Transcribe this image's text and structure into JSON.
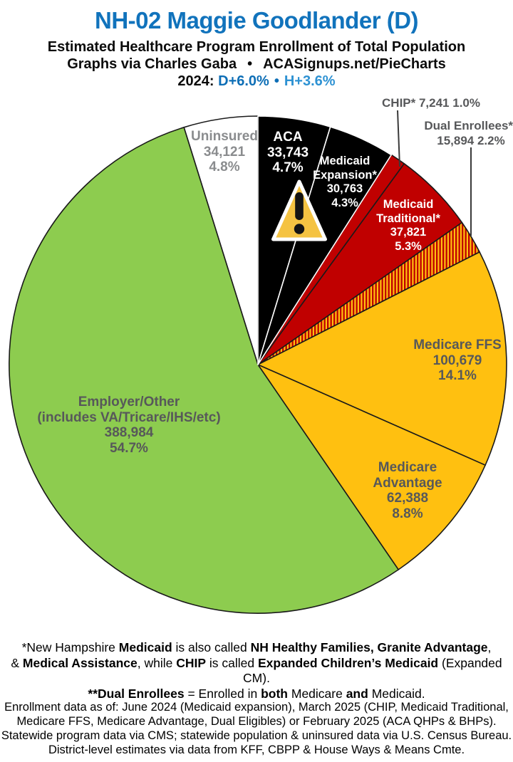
{
  "header": {
    "title": "NH-02 Maggie Goodlander (D)",
    "subtitle": "Estimated Healthcare Program Enrollment of Total Population",
    "credit": {
      "author": "Graphs via Charles Gaba",
      "bullet": "•",
      "site": "ACASignups.net/PieCharts"
    },
    "lean": {
      "prefix": "2024:",
      "d": "D+6.0%",
      "bullet": "•",
      "h": "H+3.6%"
    }
  },
  "colors": {
    "title_blue": "#1173BC",
    "d_blue": "#0D6EB6",
    "h_blue": "#2E92D3",
    "pie_black": "#000000",
    "pie_red": "#C00000",
    "pie_amber": "#FFC010",
    "pie_green": "#8DCC4F",
    "pie_white": "#FFFFFF",
    "label_dark_gray": "#57585A",
    "label_light_gray": "#8A8C8E"
  },
  "chart_data": {
    "type": "pie",
    "title": "Estimated Healthcare Program Enrollment of Total Population",
    "legend_position": "labels in/beside slices",
    "start_angle_deg": 0,
    "direction": "clockwise",
    "slices": [
      {
        "name": "ACA",
        "value": 33743,
        "pct": 4.7,
        "color": "#000000",
        "label_lines": [
          "ACA",
          "33,743",
          "4.7%"
        ]
      },
      {
        "name": "Medicaid Expansion*",
        "value": 30763,
        "pct": 4.3,
        "color": "#000000",
        "label_lines": [
          "Medicaid",
          "Expansion*",
          "30,763",
          "4.3%"
        ]
      },
      {
        "name": "CHIP*",
        "value": 7241,
        "pct": 1.0,
        "color": "#C00000",
        "label_lines": [
          "CHIP* 7,241 1.0%"
        ]
      },
      {
        "name": "Medicaid Traditional*",
        "value": 37821,
        "pct": 5.3,
        "color": "#C00000",
        "label_lines": [
          "Medicaid",
          "Traditional*",
          "37,821",
          "5.3%"
        ]
      },
      {
        "name": "Dual Enrollees**",
        "value": 15894,
        "pct": 2.2,
        "color": "hatch",
        "label_lines": [
          "Dual Enrollees**",
          "15,894 2.2%"
        ]
      },
      {
        "name": "Medicare FFS",
        "value": 100679,
        "pct": 14.1,
        "color": "#FFC010",
        "label_lines": [
          "Medicare FFS",
          "100,679",
          "14.1%"
        ]
      },
      {
        "name": "Medicare Advantage",
        "value": 62388,
        "pct": 8.8,
        "color": "#FFC010",
        "label_lines": [
          "Medicare",
          "Advantage",
          "62,388",
          "8.8%"
        ]
      },
      {
        "name": "Employer/Other (includes VA/Tricare/IHS/etc)",
        "value": 388984,
        "pct": 54.7,
        "color": "#8DCC4F",
        "label_lines": [
          "Employer/Other",
          "(includes VA/Tricare/IHS/etc)",
          "388,984",
          "54.7%"
        ]
      },
      {
        "name": "Uninsured",
        "value": 34121,
        "pct": 4.8,
        "color": "#FFFFFF",
        "label_lines": [
          "Uninsured",
          "34,121",
          "4.8%"
        ]
      }
    ],
    "hatch": {
      "bg": "#FFC010",
      "stripe": "#C00000"
    },
    "warning_icon": {
      "triangle_color": "#F5C342",
      "mark_color": "#141414",
      "outline_color": "#FFFFFF"
    }
  },
  "footnote1": {
    "line1": [
      {
        "t": "*New Hampshire ",
        "b": false
      },
      {
        "t": "Medicaid",
        "b": true
      },
      {
        "t": " is also called ",
        "b": false
      },
      {
        "t": "NH Healthy Families, Granite Advantage",
        "b": true
      },
      {
        "t": ",",
        "b": false
      }
    ],
    "line2": [
      {
        "t": "& ",
        "b": false
      },
      {
        "t": "Medical Assistance",
        "b": true
      },
      {
        "t": ", while ",
        "b": false
      },
      {
        "t": "CHIP",
        "b": true
      },
      {
        "t": " is called ",
        "b": false
      },
      {
        "t": "Expanded Children’s Medicaid",
        "b": true
      },
      {
        "t": " (Expanded CM).",
        "b": false
      }
    ],
    "line3": [
      {
        "t": "**Dual Enrollees",
        "b": true
      },
      {
        "t": " = Enrolled in ",
        "b": false
      },
      {
        "t": "both",
        "b": true
      },
      {
        "t": " Medicare ",
        "b": false
      },
      {
        "t": "and",
        "b": true
      },
      {
        "t": " Medicaid.",
        "b": false
      }
    ]
  },
  "footer": {
    "lines": [
      "Enrollment data as of: June 2024 (Medicaid expansion), March 2025 (CHIP, Medicaid Traditional,",
      "Medicare FFS, Medicare Advantage, Dual Eligibles) or February 2025 (ACA QHPs & BHPs).",
      "Statewide program data via CMS; statewide population & uninsured data via U.S. Census Bureau.",
      "District-level estimates via data from KFF, CBPP & House Ways & Means Cmte."
    ]
  }
}
